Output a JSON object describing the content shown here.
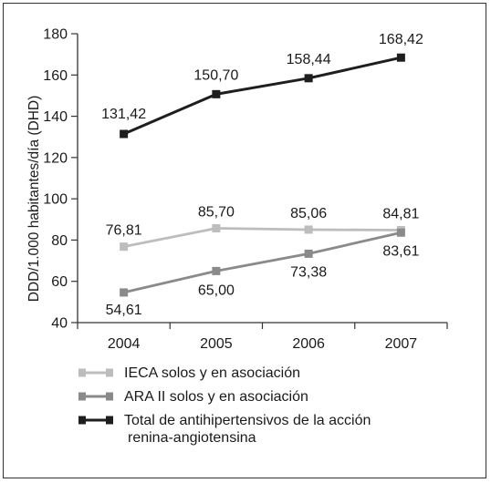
{
  "chart_data": {
    "type": "line",
    "title": "",
    "xlabel": "",
    "ylabel": "DDD/1.000 habitantes/día (DHD)",
    "ylim": [
      40,
      180
    ],
    "yticks": [
      40,
      60,
      80,
      100,
      120,
      140,
      160,
      180
    ],
    "categories": [
      "2004",
      "2005",
      "2006",
      "2007"
    ],
    "grid": false,
    "legend_position": "bottom",
    "series": [
      {
        "name": "IECA solos y en asociación",
        "color": "#bdbdbd",
        "values": [
          76.81,
          85.7,
          85.06,
          84.81
        ],
        "labels": [
          "76,81",
          "85,70",
          "85,06",
          "84,81"
        ]
      },
      {
        "name": "ARA II solos y en asociación",
        "color": "#8a8a8a",
        "values": [
          54.61,
          65.0,
          73.38,
          83.61
        ],
        "labels": [
          "54,61",
          "65,00",
          "73,38",
          "83,61"
        ]
      },
      {
        "name": "Total de antihipertensivos de la acción renina-angiotensina",
        "legend_lines": [
          "Total de antihipertensivos de la acción",
          "renina-angiotensina"
        ],
        "color": "#1e1e1e",
        "values": [
          131.42,
          150.7,
          158.44,
          168.42
        ],
        "labels": [
          "131,42",
          "150,70",
          "158,44",
          "168,42"
        ]
      }
    ]
  }
}
